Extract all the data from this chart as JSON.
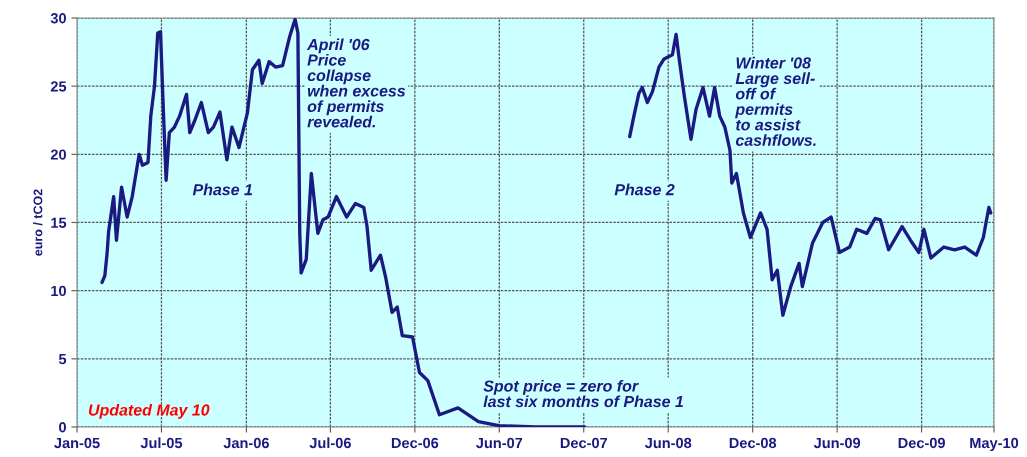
{
  "chart_data": {
    "type": "line",
    "ylabel": "euro / tCO2",
    "x": [
      "2005-02-24",
      "2005-03-02",
      "2005-03-07",
      "2005-03-10",
      "2005-03-21",
      "2005-03-27",
      "2005-04-07",
      "2005-04-19",
      "2005-04-30",
      "2005-05-15",
      "2005-05-22",
      "2005-06-03",
      "2005-06-09",
      "2005-06-17",
      "2005-06-24",
      "2005-06-30",
      "2005-07-05",
      "2005-07-12",
      "2005-07-19",
      "2005-07-30",
      "2005-08-10",
      "2005-08-25",
      "2005-09-01",
      "2005-09-12",
      "2005-09-26",
      "2005-10-11",
      "2005-10-22",
      "2005-11-05",
      "2005-11-20",
      "2005-12-01",
      "2005-12-16",
      "2006-01-03",
      "2006-01-14",
      "2006-01-28",
      "2006-02-04",
      "2006-02-19",
      "2006-03-05",
      "2006-03-20",
      "2006-04-04",
      "2006-04-16",
      "2006-04-22",
      "2006-04-26",
      "2006-04-29",
      "2006-05-10",
      "2006-05-21",
      "2006-06-04",
      "2006-06-15",
      "2006-06-26",
      "2006-07-14",
      "2006-08-05",
      "2006-08-24",
      "2006-09-11",
      "2006-09-18",
      "2006-09-27",
      "2006-10-17",
      "2006-10-28",
      "2006-11-11",
      "2006-11-22",
      "2006-12-03",
      "2006-12-25",
      "2007-01-09",
      "2007-01-27",
      "2007-02-21",
      "2007-04-02",
      "2007-05-16",
      "2007-06-29",
      "2007-09-15",
      "2007-12-31",
      "2008-02-15",
      "2008-04-06",
      "2008-04-15",
      "2008-04-26",
      "2008-05-03",
      "2008-05-14",
      "2008-05-25",
      "2008-06-08",
      "2008-06-19",
      "2008-07-07",
      "2008-07-15",
      "2008-07-22",
      "2008-08-02",
      "2008-08-16",
      "2008-08-27",
      "2008-09-11",
      "2008-09-25",
      "2008-10-06",
      "2008-10-17",
      "2008-10-28",
      "2008-11-08",
      "2008-11-12",
      "2008-11-22",
      "2008-12-07",
      "2008-12-22",
      "2009-01-13",
      "2009-01-27",
      "2009-02-07",
      "2009-02-18",
      "2009-03-02",
      "2009-03-19",
      "2009-04-06",
      "2009-04-13",
      "2009-05-05",
      "2009-05-27",
      "2009-06-14",
      "2009-07-02",
      "2009-07-24",
      "2009-08-08",
      "2009-08-30",
      "2009-09-17",
      "2009-09-28",
      "2009-10-16",
      "2009-11-14",
      "2009-12-02",
      "2009-12-20",
      "2009-12-31",
      "2010-01-15",
      "2010-02-12",
      "2010-03-07",
      "2010-03-29",
      "2010-04-23",
      "2010-05-08",
      "2010-05-15",
      "2010-05-20",
      "2010-05-24"
    ],
    "series": [
      {
        "color": "#1a1a80",
        "values": [
          10.6,
          11.1,
          12.8,
          14.3,
          16.9,
          13.7,
          17.6,
          15.4,
          16.9,
          20.0,
          19.2,
          19.4,
          22.8,
          25.0,
          28.9,
          29.0,
          24.2,
          18.1,
          21.6,
          22.0,
          22.8,
          24.4,
          21.6,
          22.5,
          23.8,
          21.6,
          22.0,
          23.1,
          19.6,
          22.0,
          20.5,
          23.0,
          26.2,
          26.9,
          25.2,
          26.8,
          26.4,
          26.5,
          28.6,
          29.9,
          28.9,
          14.2,
          11.3,
          12.3,
          18.6,
          14.2,
          15.2,
          15.4,
          16.9,
          15.4,
          16.4,
          16.1,
          14.7,
          11.5,
          12.6,
          11.0,
          8.4,
          8.8,
          6.7,
          6.6,
          4.0,
          3.4,
          0.9,
          1.4,
          0.4,
          0.1,
          0,
          0,
          null,
          21.3,
          22.8,
          24.5,
          24.9,
          23.8,
          24.6,
          26.4,
          27.0,
          27.3,
          28.8,
          26.9,
          24.2,
          21.1,
          23.3,
          24.9,
          22.8,
          24.9,
          22.8,
          22.0,
          20.3,
          17.9,
          18.6,
          15.7,
          13.9,
          15.7,
          14.5,
          10.8,
          11.5,
          8.2,
          10.3,
          12.0,
          10.3,
          13.5,
          15.0,
          15.4,
          12.8,
          13.2,
          14.5,
          14.2,
          15.3,
          15.2,
          13.0,
          14.7,
          13.7,
          12.8,
          14.5,
          12.4,
          13.2,
          13.0,
          13.2,
          12.6,
          13.9,
          15.2,
          16.1,
          15.7
        ]
      }
    ],
    "xlim": [
      "2005-01-01",
      "2010-05-31"
    ],
    "xticks": [
      {
        "value": "2005-01-01",
        "label": "Jan-05"
      },
      {
        "value": "2005-07-02",
        "label": "Jul-05"
      },
      {
        "value": "2006-01-01",
        "label": "Jan-06"
      },
      {
        "value": "2006-07-01",
        "label": "Jul-06"
      },
      {
        "value": "2006-12-30",
        "label": "Dec-06"
      },
      {
        "value": "2007-06-30",
        "label": "Jun-07"
      },
      {
        "value": "2007-12-29",
        "label": "Dec-07"
      },
      {
        "value": "2008-06-28",
        "label": "Jun-08"
      },
      {
        "value": "2008-12-27",
        "label": "Dec-08"
      },
      {
        "value": "2009-06-27",
        "label": "Jun-09"
      },
      {
        "value": "2009-12-26",
        "label": "Dec-09"
      },
      {
        "value": "2010-05-31",
        "label": "May-10"
      }
    ],
    "ylim": [
      0,
      30
    ],
    "yticks": [
      0,
      5,
      10,
      15,
      20,
      25,
      30
    ],
    "grid": true,
    "annotations": [
      "April '06\nPrice\ncollapse\nwhen excess\nof permits\nrevealed.",
      "Phase 1",
      "Winter '08\nLarge sell-\noff of\npermits\nto assist\ncashflows.",
      "Phase 2",
      "Spot price = zero for\nlast six months of Phase 1",
      "Updated May 10"
    ]
  }
}
